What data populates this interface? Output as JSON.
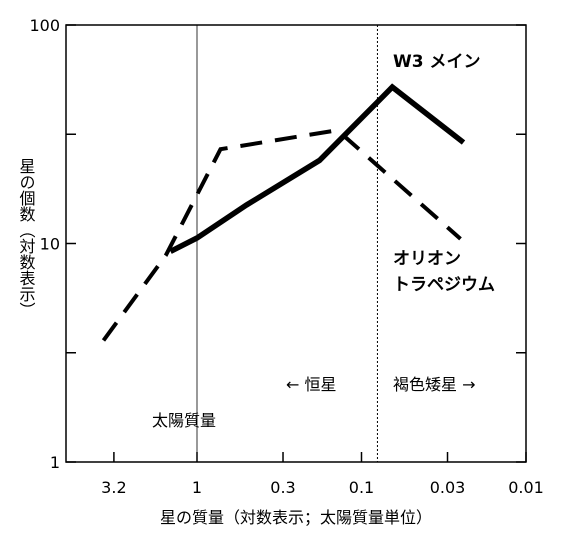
{
  "chart_data": {
    "type": "line",
    "xlabel": "星の質量（対数表示；太陽質量単位）",
    "ylabel": "星の個数（対数表示）",
    "x_scale": "log-reversed",
    "y_scale": "log",
    "xlim": [
      5.0,
      0.01
    ],
    "ylim": [
      1,
      100
    ],
    "x_ticks": [
      {
        "value": 3.2,
        "label": "3.2"
      },
      {
        "value": 1,
        "label": "1"
      },
      {
        "value": 0.3,
        "label": "0.3"
      },
      {
        "value": 0.1,
        "label": "0.1"
      },
      {
        "value": 0.03,
        "label": "0.03"
      },
      {
        "value": 0.01,
        "label": "0.01"
      }
    ],
    "y_ticks": [
      {
        "value": 1,
        "label": "1"
      },
      {
        "value": 10,
        "label": "10"
      },
      {
        "value": 100,
        "label": "100"
      }
    ],
    "series": [
      {
        "name": "W3 メイン",
        "style": "solid",
        "color": "#000000",
        "points": [
          [
            1.45,
            9.2
          ],
          [
            1.0,
            10.6
          ],
          [
            0.5,
            15.0
          ],
          [
            0.18,
            24.0
          ],
          [
            0.065,
            52.0
          ],
          [
            0.024,
            29.0
          ]
        ]
      },
      {
        "name": "オリオン トラペジウム",
        "style": "dashed",
        "color": "#000000",
        "points": [
          [
            3.7,
            3.6
          ],
          [
            1.55,
            8.8
          ],
          [
            0.72,
            27.0
          ],
          [
            0.14,
            33.0
          ],
          [
            0.025,
            10.5
          ]
        ]
      }
    ],
    "reference_lines": [
      {
        "x": 1.0,
        "label": "太陽質量",
        "style": "solid-thin"
      },
      {
        "x": 0.08,
        "style": "dotted"
      }
    ],
    "annotations": {
      "w3_label": "W3 メイン",
      "orion_line1": "オリオン",
      "orion_line2": "トラペジウム",
      "main_sequence": "← 恒星",
      "brown_dwarf": "褐色矮星 →",
      "sun_mass": "太陽質量"
    },
    "grid": false
  }
}
